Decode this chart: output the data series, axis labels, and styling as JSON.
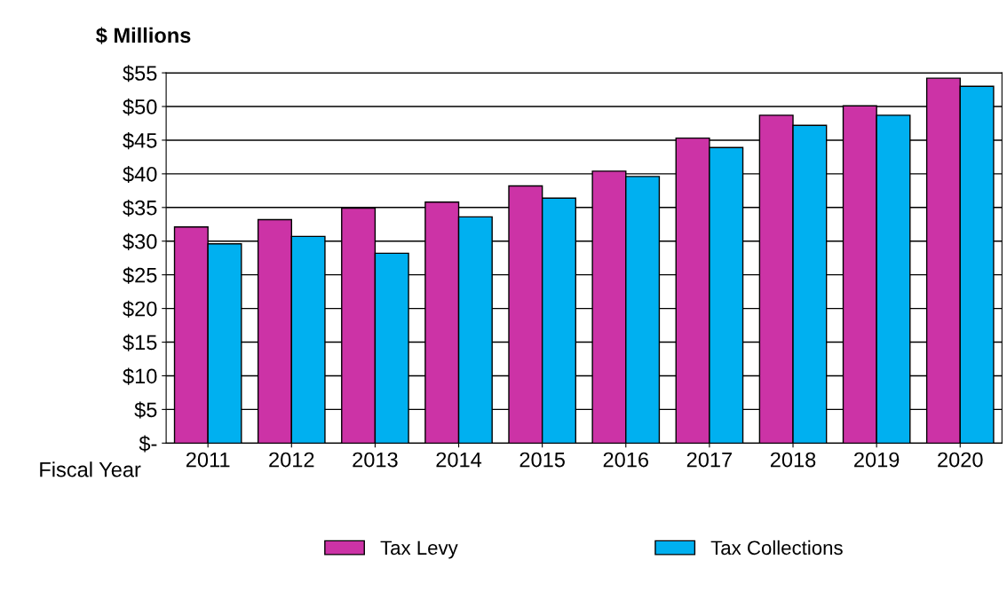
{
  "chart_data": {
    "type": "bar",
    "ylabel": "$ Millions",
    "xlabel": "Fiscal Year",
    "categories": [
      "2011",
      "2012",
      "2013",
      "2014",
      "2015",
      "2016",
      "2017",
      "2018",
      "2019",
      "2020"
    ],
    "series": [
      {
        "name": "Tax Levy",
        "color": "#cc33a6",
        "values": [
          32.1,
          33.2,
          34.9,
          35.8,
          38.2,
          40.4,
          45.3,
          48.7,
          50.1,
          54.2
        ]
      },
      {
        "name": "Tax Collections",
        "color": "#00b0f0",
        "values": [
          29.6,
          30.7,
          28.2,
          33.6,
          36.4,
          39.6,
          43.9,
          47.2,
          48.7,
          53.0
        ]
      }
    ],
    "ylim": [
      0,
      55
    ],
    "yticks": [
      {
        "value": 0,
        "label": "$-"
      },
      {
        "value": 5,
        "label": "$5"
      },
      {
        "value": 10,
        "label": "$10"
      },
      {
        "value": 15,
        "label": "$15"
      },
      {
        "value": 20,
        "label": "$20"
      },
      {
        "value": 25,
        "label": "$25"
      },
      {
        "value": 30,
        "label": "$30"
      },
      {
        "value": 35,
        "label": "$35"
      },
      {
        "value": 40,
        "label": "$40"
      },
      {
        "value": 45,
        "label": "$45"
      },
      {
        "value": 50,
        "label": "$50"
      },
      {
        "value": 55,
        "label": "$55"
      }
    ],
    "grid": "y",
    "legend": "bottom"
  }
}
